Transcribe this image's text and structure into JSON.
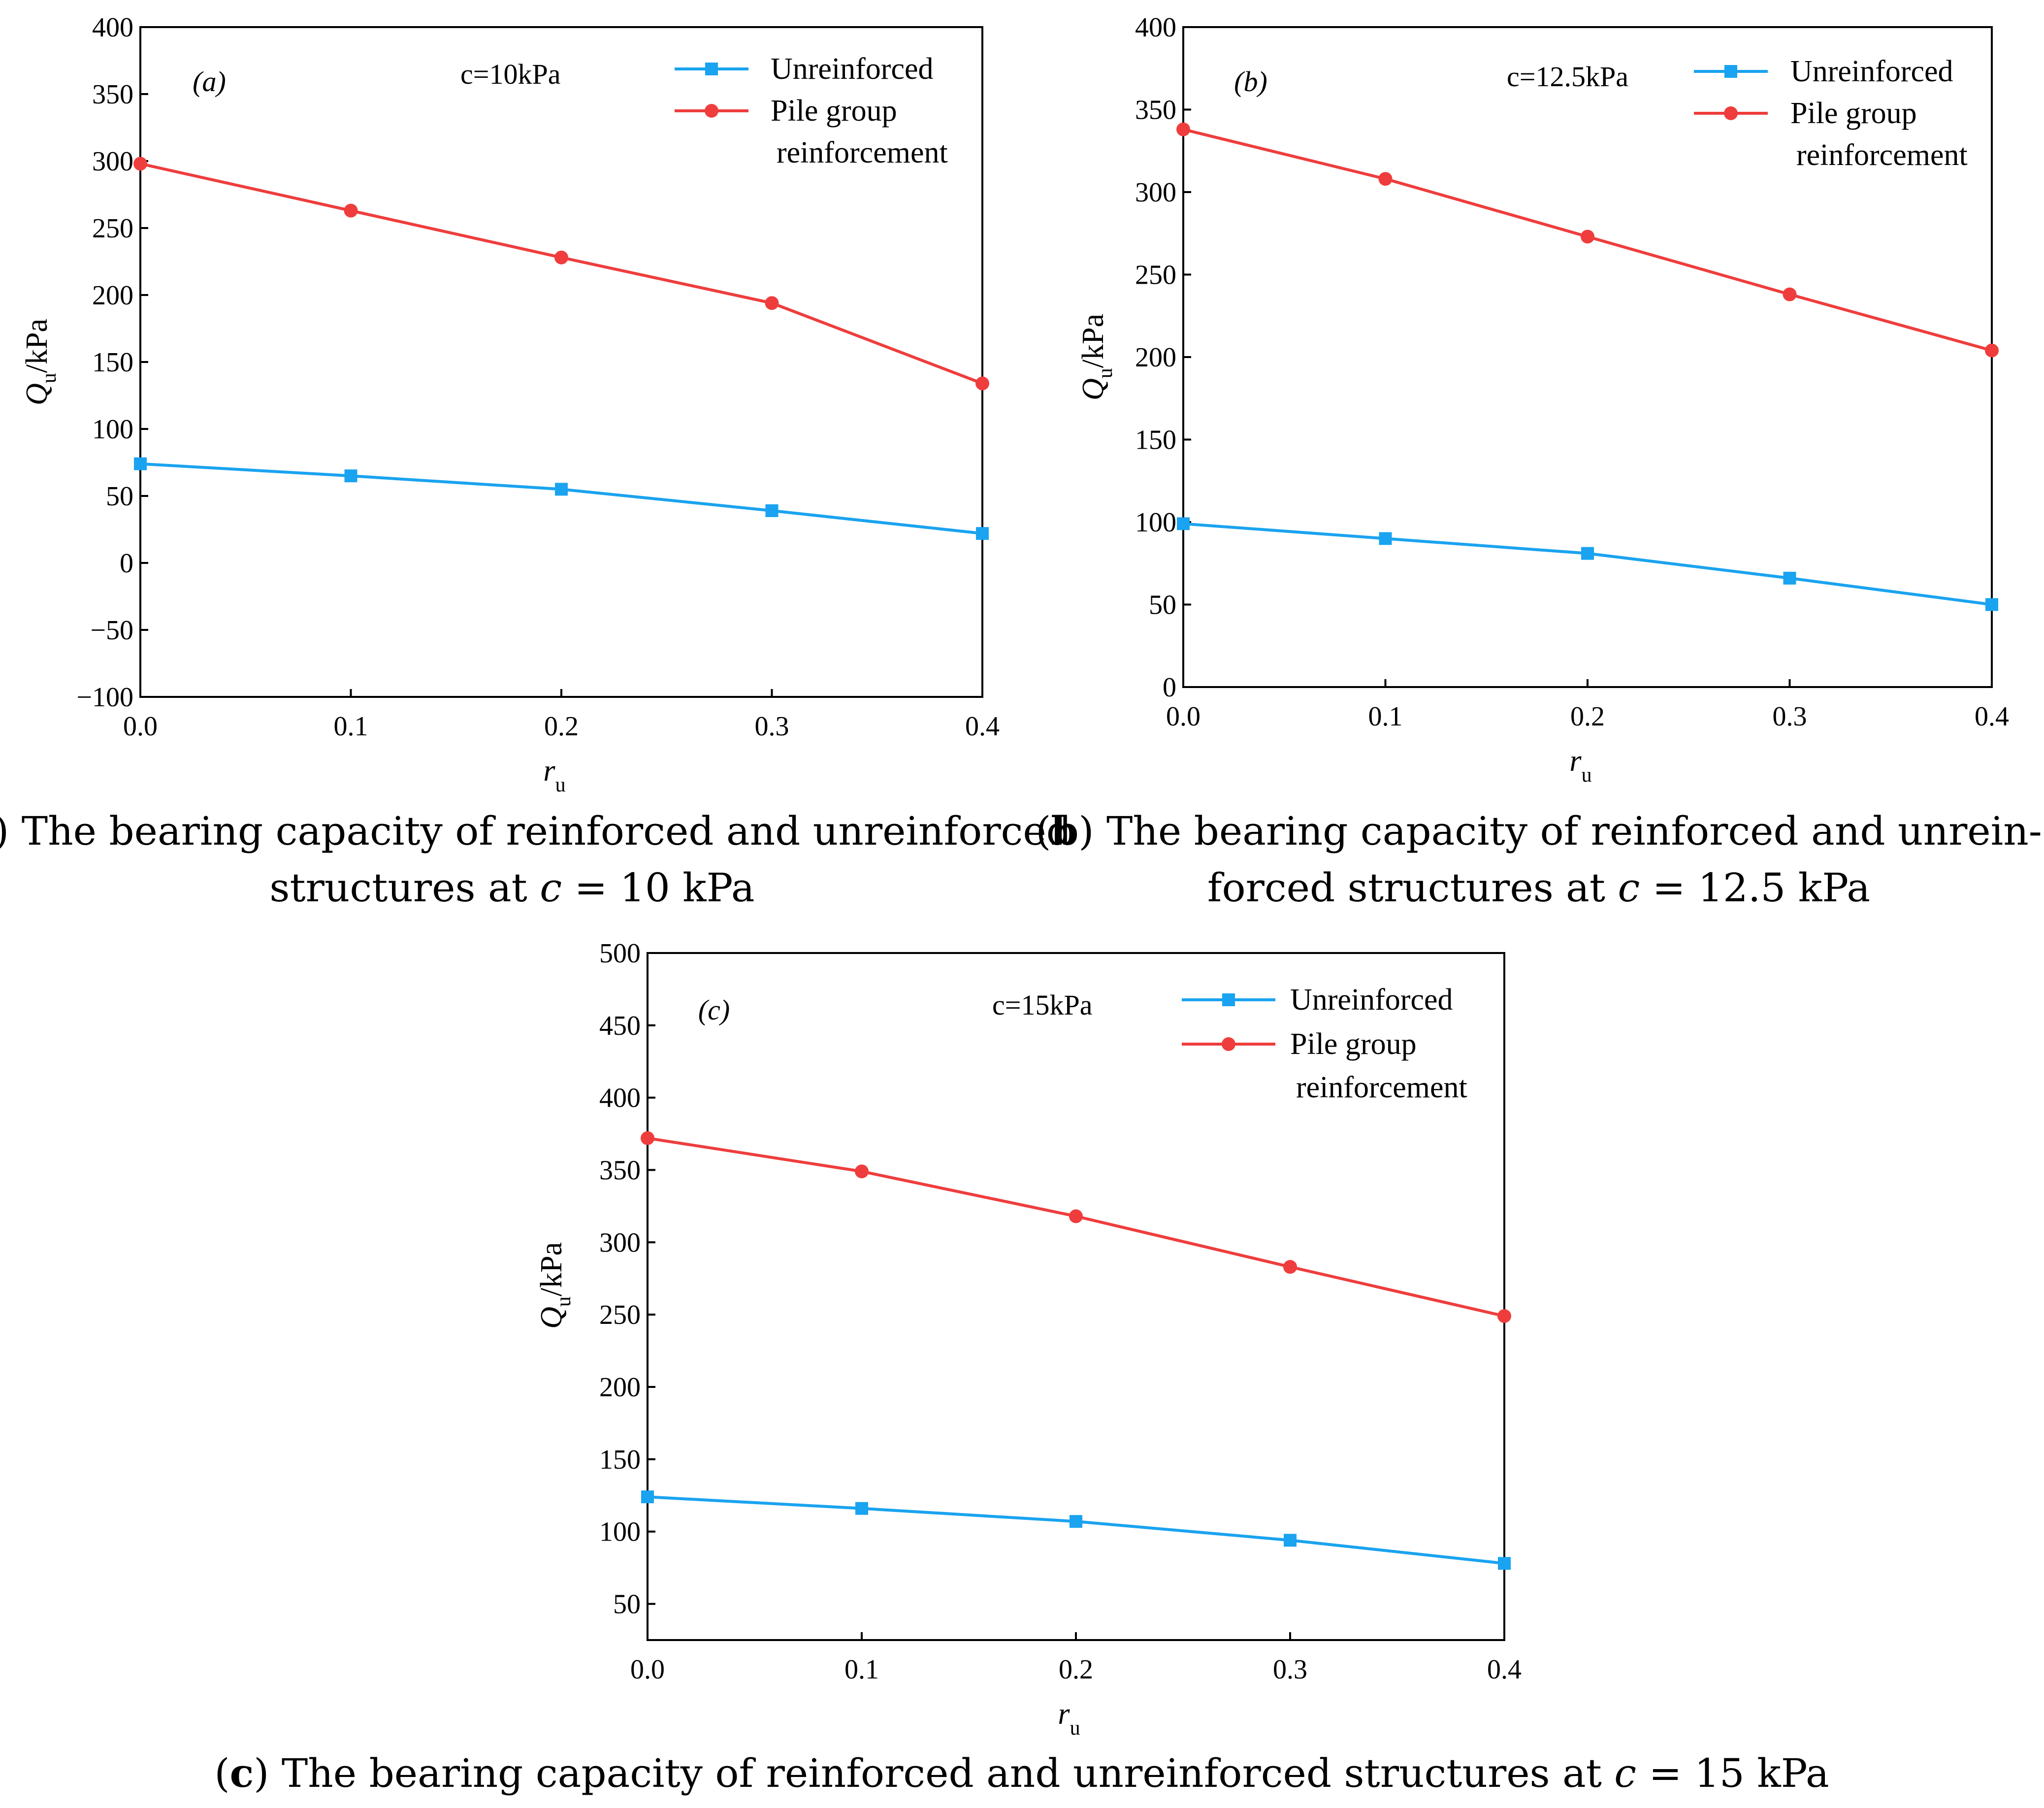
{
  "chart_data": [
    {
      "id": "a",
      "type": "line",
      "panel_label": "(a)",
      "annotation": "c=10kPa",
      "xlabel": "r",
      "xlabel_sub": "u",
      "ylabel": "Q",
      "ylabel_sub": "u",
      "ylabel_unit": "/kPa",
      "x": [
        0.0,
        0.1,
        0.2,
        0.3,
        0.4
      ],
      "xticks": [
        "0.0",
        "0.1",
        "0.2",
        "0.3",
        "0.4"
      ],
      "xlim": [
        0,
        0.4
      ],
      "ylim": [
        -100,
        400
      ],
      "yticks": [
        "−100",
        "−50",
        "0",
        "50",
        "100",
        "150",
        "200",
        "250",
        "300",
        "350",
        "400"
      ],
      "ytick_values": [
        -100,
        -50,
        0,
        50,
        100,
        150,
        200,
        250,
        300,
        350,
        400
      ],
      "legend_position": "top-right",
      "series": [
        {
          "name": "Unreinforced",
          "color": "#1aa3f0",
          "marker": "square",
          "values": [
            74,
            65,
            55,
            39,
            22
          ]
        },
        {
          "name": "Pile group reinforcement",
          "name_lines": [
            "Pile group",
            "reinforcement"
          ],
          "color": "#ef3d3d",
          "marker": "circle",
          "values": [
            298,
            263,
            228,
            194,
            134
          ]
        }
      ],
      "caption_bold": "a",
      "caption_lines": [
        "The bearing capacity of reinforced and unreinforced",
        "structures at ",
        "c",
        " = 10 kPa"
      ]
    },
    {
      "id": "b",
      "type": "line",
      "panel_label": "(b)",
      "annotation": "c=12.5kPa",
      "xlabel": "r",
      "xlabel_sub": "u",
      "ylabel": "Q",
      "ylabel_sub": "u",
      "ylabel_unit": "/kPa",
      "x": [
        0.0,
        0.1,
        0.2,
        0.3,
        0.4
      ],
      "xticks": [
        "0.0",
        "0.1",
        "0.2",
        "0.3",
        "0.4"
      ],
      "xlim": [
        0,
        0.4
      ],
      "ylim": [
        0,
        400
      ],
      "yticks": [
        "0",
        "50",
        "100",
        "150",
        "200",
        "250",
        "300",
        "350",
        "400"
      ],
      "ytick_values": [
        0,
        50,
        100,
        150,
        200,
        250,
        300,
        350,
        400
      ],
      "legend_position": "top-right",
      "series": [
        {
          "name": "Unreinforced",
          "color": "#1aa3f0",
          "marker": "square",
          "values": [
            99,
            90,
            81,
            66,
            50
          ]
        },
        {
          "name": "Pile group reinforcement",
          "name_lines": [
            "Pile group",
            "reinforcement"
          ],
          "color": "#ef3d3d",
          "marker": "circle",
          "values": [
            338,
            308,
            273,
            238,
            204
          ]
        }
      ],
      "caption_bold": "b",
      "caption_lines": [
        "The bearing capacity of reinforced and unrein-",
        "forced structures at ",
        "c",
        " = 12.5 kPa"
      ]
    },
    {
      "id": "c",
      "type": "line",
      "panel_label": "(c)",
      "annotation": "c=15kPa",
      "xlabel": "r",
      "xlabel_sub": "u",
      "ylabel": "Q",
      "ylabel_sub": "u",
      "ylabel_unit": "/kPa",
      "x": [
        0.0,
        0.1,
        0.2,
        0.3,
        0.4
      ],
      "xticks": [
        "0.0",
        "0.1",
        "0.2",
        "0.3",
        "0.4"
      ],
      "xlim": [
        0,
        0.4
      ],
      "ylim": [
        25,
        500
      ],
      "yticks": [
        "50",
        "100",
        "150",
        "200",
        "250",
        "300",
        "350",
        "400",
        "450",
        "500"
      ],
      "ytick_values": [
        50,
        100,
        150,
        200,
        250,
        300,
        350,
        400,
        450,
        500
      ],
      "legend_position": "top-right",
      "series": [
        {
          "name": "Unreinforced",
          "color": "#1aa3f0",
          "marker": "square",
          "values": [
            124,
            116,
            107,
            94,
            78
          ]
        },
        {
          "name": "Pile group reinforcement",
          "name_lines": [
            "Pile group",
            "reinforcement"
          ],
          "color": "#ef3d3d",
          "marker": "circle",
          "values": [
            372,
            349,
            318,
            283,
            249
          ]
        }
      ],
      "caption_bold": "c",
      "caption_lines": [
        "The bearing capacity of reinforced and unreinforced structures at ",
        "c",
        " = 15 kPa"
      ]
    }
  ]
}
